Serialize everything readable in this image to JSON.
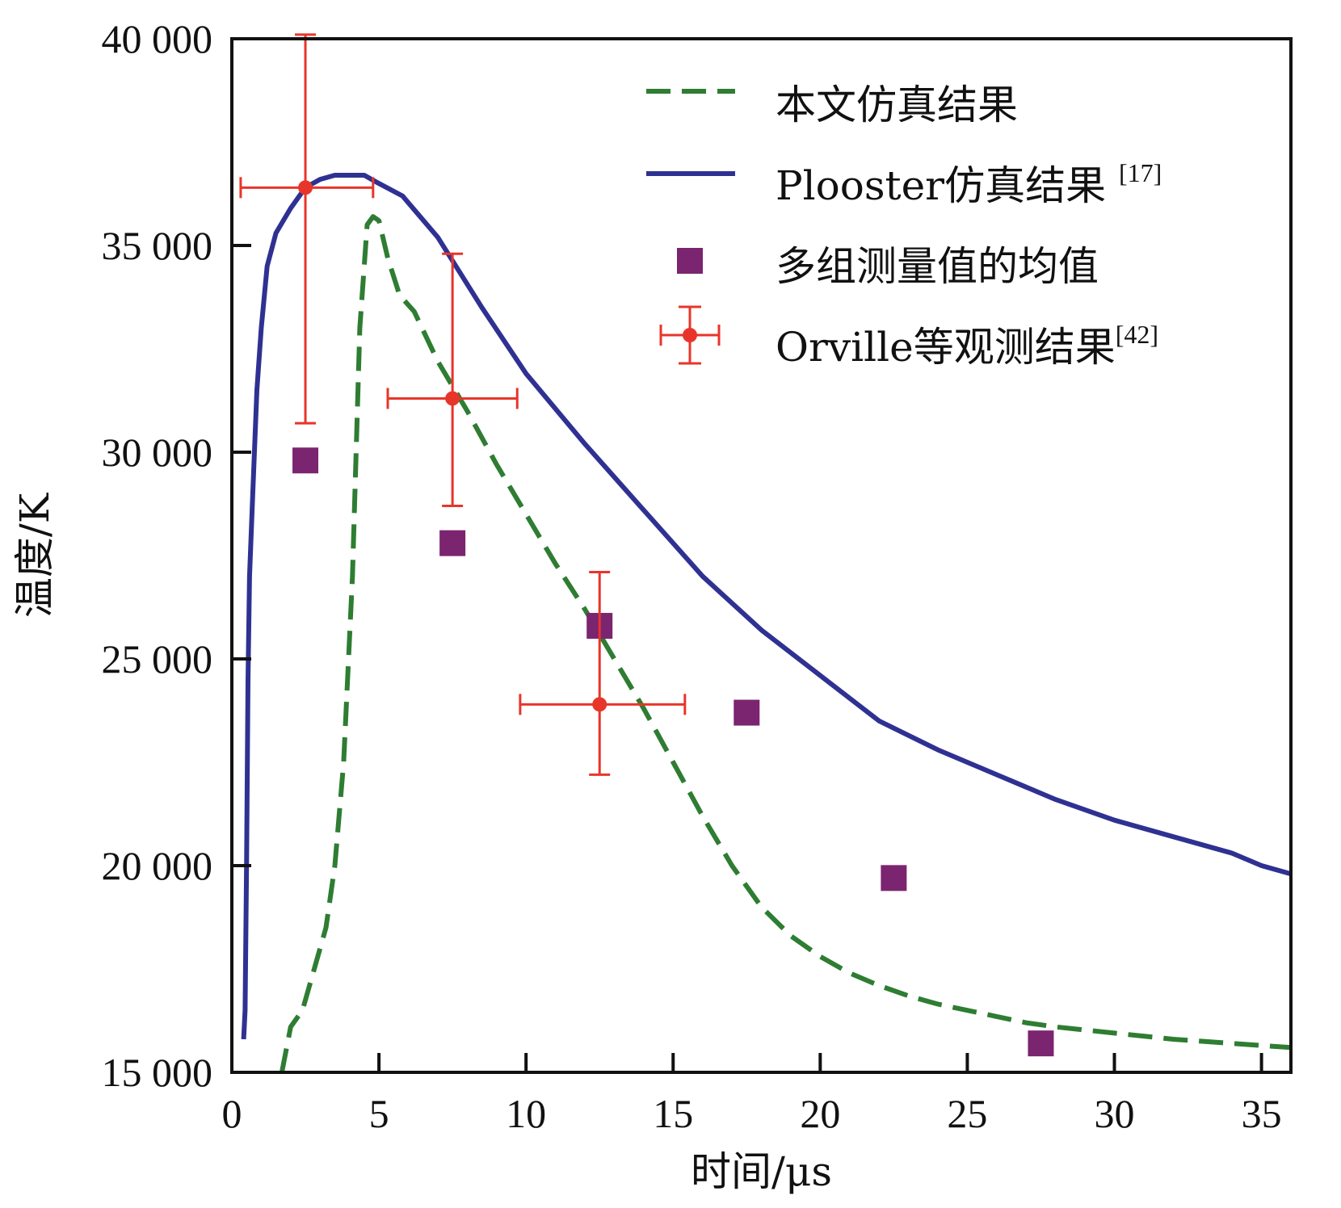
{
  "chart_data": {
    "type": "line",
    "title": "",
    "xlabel": "时间/μs",
    "ylabel": "温度/K",
    "xlim": [
      0,
      36
    ],
    "ylim": [
      15000,
      40000
    ],
    "x_ticks": [
      0,
      5,
      10,
      15,
      20,
      25,
      30,
      35
    ],
    "x_tick_labels": [
      "0",
      "5",
      "10",
      "15",
      "20",
      "25",
      "30",
      "35"
    ],
    "y_ticks": [
      15000,
      20000,
      25000,
      30000,
      35000,
      40000
    ],
    "y_tick_labels": [
      "15 000",
      "20 000",
      "25 000",
      "30 000",
      "35 000",
      "40 000"
    ],
    "grid": false,
    "legend_position": "top-right",
    "colors": {
      "simulation": "#2e7d32",
      "plooster": "#2f3192",
      "mean": "#7b2470",
      "orville": "#e8352a",
      "axis": "#111111"
    },
    "series": [
      {
        "name": "本文仿真结果",
        "style": "dashed",
        "x": [
          1.7,
          2.0,
          2.4,
          2.8,
          3.2,
          3.5,
          3.8,
          4.1,
          4.35,
          4.6,
          4.8,
          5.0,
          5.3,
          5.7,
          6.2,
          7.0,
          8.0,
          9.0,
          10.0,
          11.0,
          12.0,
          13.0,
          14.0,
          15.0,
          16.0,
          17.0,
          18.0,
          19.0,
          20.0,
          21.0,
          22.0,
          23.0,
          24.0,
          25.0,
          26.0,
          27.0,
          28.0,
          30.0,
          32.0,
          34.0,
          36.0
        ],
        "values": [
          15000,
          16100,
          16500,
          17500,
          18500,
          20000,
          22500,
          27000,
          33000,
          35500,
          35700,
          35600,
          34700,
          33800,
          33400,
          32200,
          31000,
          29700,
          28500,
          27300,
          26200,
          25000,
          23800,
          22500,
          21200,
          20000,
          19000,
          18300,
          17800,
          17400,
          17100,
          16850,
          16650,
          16500,
          16350,
          16200,
          16100,
          15950,
          15800,
          15700,
          15600
        ]
      },
      {
        "name": "Plooster仿真结果",
        "ref": "[17]",
        "style": "solid",
        "x": [
          0.4,
          0.45,
          0.5,
          0.55,
          0.6,
          0.7,
          0.85,
          1.0,
          1.2,
          1.5,
          2.0,
          2.5,
          3.0,
          3.5,
          4.0,
          4.5,
          5.0,
          5.8,
          7.0,
          8.5,
          10.0,
          12.0,
          14.0,
          16.0,
          18.0,
          20.0,
          22.0,
          24.0,
          26.0,
          28.0,
          30.0,
          32.0,
          34.0,
          35.0,
          36.0
        ],
        "values": [
          15800,
          16500,
          20000,
          24500,
          27000,
          28800,
          31500,
          33000,
          34500,
          35300,
          35900,
          36400,
          36600,
          36700,
          36700,
          36700,
          36500,
          36200,
          35200,
          33500,
          31900,
          30200,
          28600,
          27000,
          25700,
          24600,
          23500,
          22800,
          22200,
          21600,
          21100,
          20700,
          20300,
          20000,
          19800
        ]
      }
    ],
    "points": {
      "name": "多组测量值的均值",
      "x": [
        2.5,
        7.5,
        12.5,
        17.5,
        22.5,
        27.5
      ],
      "values": [
        29800,
        27800,
        25800,
        23700,
        19700,
        15700
      ]
    },
    "errorbars": {
      "name": "Orville等观测结果",
      "ref": "[42]",
      "x": [
        2.5,
        7.5,
        12.5
      ],
      "values": [
        36400,
        31300,
        23900
      ],
      "x_low": [
        0.3,
        5.3,
        9.8
      ],
      "x_high": [
        4.8,
        9.7,
        15.4
      ],
      "y_low": [
        30700,
        28700,
        22200
      ],
      "y_high": [
        40100,
        34800,
        27100
      ]
    },
    "legend": [
      {
        "label": "本文仿真结果",
        "ref": ""
      },
      {
        "label": "Plooster仿真结果 ",
        "ref": "[17]"
      },
      {
        "label": "多组测量值的均值",
        "ref": ""
      },
      {
        "label": "Orville等观测结果",
        "ref": "[42]"
      }
    ]
  }
}
